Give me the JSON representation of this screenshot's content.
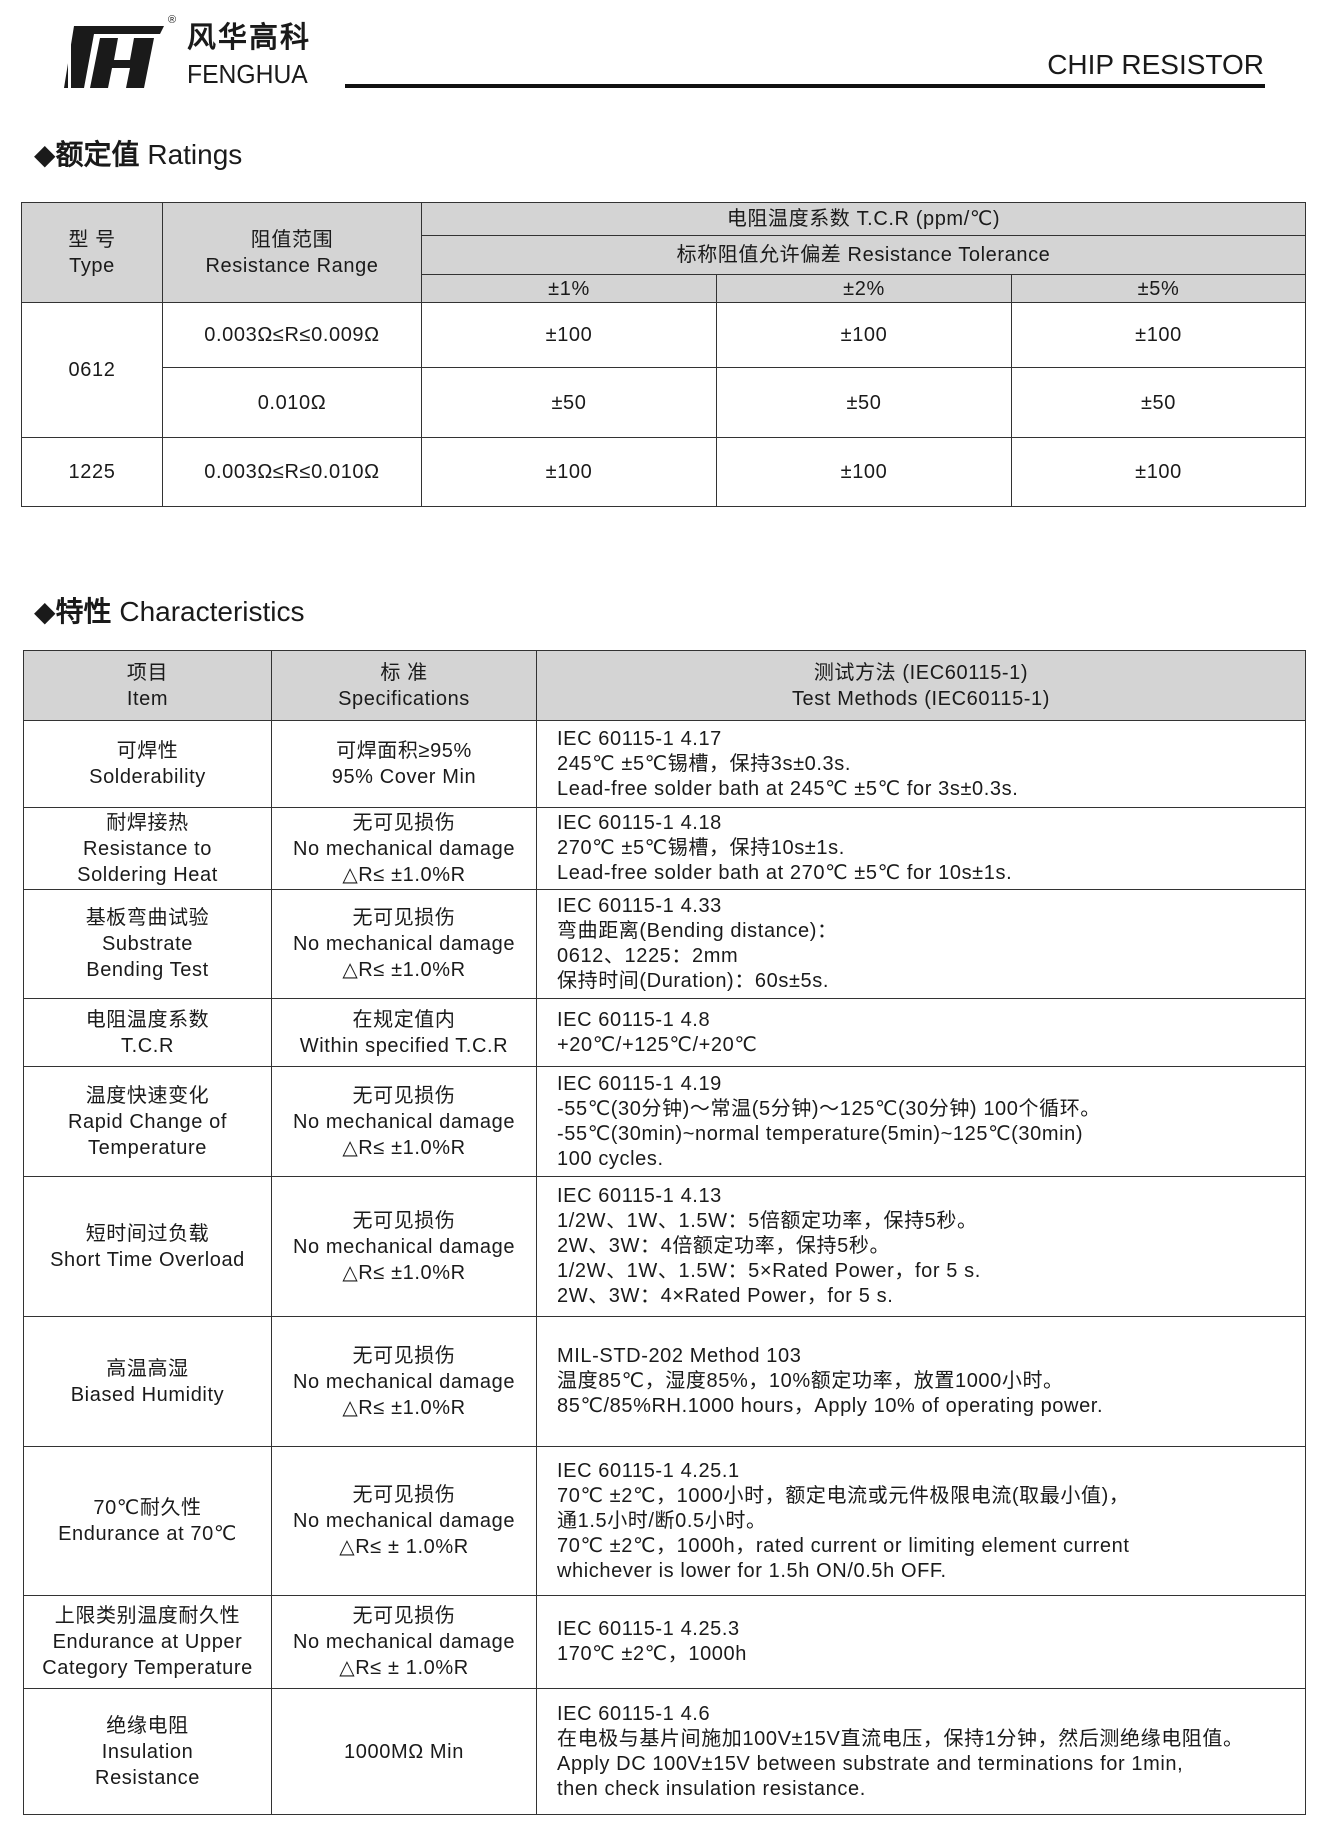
{
  "header": {
    "brand_cn": "风华高科",
    "brand_en": "FENGHUA",
    "registered": "®",
    "product": "CHIP RESISTOR"
  },
  "ratings": {
    "heading_cn": "额定值",
    "heading_en": "Ratings",
    "col_type_cn": "型 号",
    "col_type_en": "Type",
    "col_range_cn": "阻值范围",
    "col_range_en": "Resistance Range",
    "col_tcr": "电阻温度系数  T.C.R (ppm/℃)",
    "col_tol": "标称阻值允许偏差   Resistance Tolerance",
    "tolerances": [
      "±1%",
      "±2%",
      "±5%"
    ],
    "rows": [
      {
        "type": "0612",
        "range": "0.003Ω≤R≤0.009Ω",
        "values": [
          "±100",
          "±100",
          "±100"
        ]
      },
      {
        "type": "",
        "range": "0.010Ω",
        "values": [
          "±50",
          "±50",
          "±50"
        ]
      },
      {
        "type": "1225",
        "range": "0.003Ω≤R≤0.010Ω",
        "values": [
          "±100",
          "±100",
          "±100"
        ]
      }
    ]
  },
  "characteristics": {
    "heading_cn": "特性",
    "heading_en": "Characteristics",
    "col_item": [
      "项目",
      "Item"
    ],
    "col_spec": [
      "标 准",
      "Specifications"
    ],
    "col_method": [
      "测试方法 (IEC60115-1)",
      "Test Methods  (IEC60115-1)"
    ],
    "rows": [
      {
        "item": [
          "可焊性",
          "Solderability"
        ],
        "spec": [
          "可焊面积≥95%",
          "95% Cover Min"
        ],
        "method": [
          "IEC 60115-1 4.17",
          "245℃ ±5℃锡槽，保持3s±0.3s.",
          "Lead-free solder bath at 245℃ ±5℃ for 3s±0.3s."
        ]
      },
      {
        "item": [
          "耐焊接热",
          "Resistance to",
          "Soldering Heat"
        ],
        "spec": [
          "无可见损伤",
          "No mechanical damage",
          "△R≤ ±1.0%R"
        ],
        "method": [
          "IEC 60115-1 4.18",
          "270℃ ±5℃锡槽，保持10s±1s.",
          "Lead-free solder bath at 270℃ ±5℃ for 10s±1s."
        ]
      },
      {
        "item": [
          "基板弯曲试验",
          "Substrate",
          "Bending Test"
        ],
        "spec": [
          "无可见损伤",
          "No mechanical damage",
          "△R≤ ±1.0%R"
        ],
        "method": [
          "IEC 60115-1 4.33",
          "弯曲距离(Bending distance)：",
          "0612、1225：2mm",
          "保持时间(Duration)：60s±5s."
        ]
      },
      {
        "item": [
          "电阻温度系数",
          "T.C.R"
        ],
        "spec": [
          "在规定值内",
          "Within specified T.C.R"
        ],
        "method": [
          "IEC 60115-1 4.8",
          "+20℃/+125℃/+20℃"
        ]
      },
      {
        "item": [
          "温度快速变化",
          "Rapid Change of",
          "Temperature"
        ],
        "spec": [
          "无可见损伤",
          "No mechanical damage",
          "△R≤ ±1.0%R"
        ],
        "method": [
          "IEC 60115-1 4.19",
          "-55℃(30分钟)～常温(5分钟)～125℃(30分钟)    100个循环。",
          "-55℃(30min)~normal temperature(5min)~125℃(30min)",
          "100 cycles."
        ]
      },
      {
        "item": [
          "短时间过负载",
          "Short Time Overload"
        ],
        "spec": [
          "无可见损伤",
          "No mechanical damage",
          "△R≤ ±1.0%R"
        ],
        "method": [
          "IEC 60115-1 4.13",
          "1/2W、1W、1.5W：5倍额定功率，保持5秒。",
          "2W、3W：4倍额定功率，保持5秒。",
          "1/2W、1W、1.5W：5×Rated Power，for 5 s.",
          "2W、3W：4×Rated Power，for 5 s."
        ]
      },
      {
        "item": [
          "高温高湿",
          "Biased Humidity"
        ],
        "spec": [
          "无可见损伤",
          "No mechanical damage",
          "△R≤ ±1.0%R"
        ],
        "method": [
          "MIL-STD-202 Method 103",
          "温度85℃，湿度85%，10%额定功率，放置1000小时。",
          "85℃/85%RH.1000 hours，Apply 10% of operating power."
        ]
      },
      {
        "item": [
          "70℃耐久性",
          "Endurance at 70℃"
        ],
        "spec": [
          "无可见损伤",
          "No mechanical damage",
          "△R≤ ± 1.0%R"
        ],
        "method": [
          "IEC 60115-1 4.25.1",
          "70℃ ±2℃，1000小时，额定电流或元件极限电流(取最小值)，",
          "通1.5小时/断0.5小时。",
          "70℃ ±2℃，1000h，rated current or limiting element current",
          "whichever is lower for 1.5h ON/0.5h OFF."
        ]
      },
      {
        "item": [
          "上限类别温度耐久性",
          "Endurance at Upper",
          "Category Temperature"
        ],
        "spec": [
          "无可见损伤",
          "No mechanical damage",
          "△R≤ ± 1.0%R"
        ],
        "method": [
          "IEC 60115-1 4.25.3",
          "170℃ ±2℃，1000h"
        ]
      },
      {
        "item": [
          "绝缘电阻",
          "Insulation",
          "Resistance"
        ],
        "spec": [
          "1000MΩ  Min"
        ],
        "method": [
          "IEC 60115-1 4.6",
          "在电极与基片间施加100V±15V直流电压，保持1分钟，然后测绝缘电阻值。",
          "Apply DC 100V±15V between substrate and terminations for 1min,",
          "then check insulation resistance."
        ]
      }
    ]
  }
}
